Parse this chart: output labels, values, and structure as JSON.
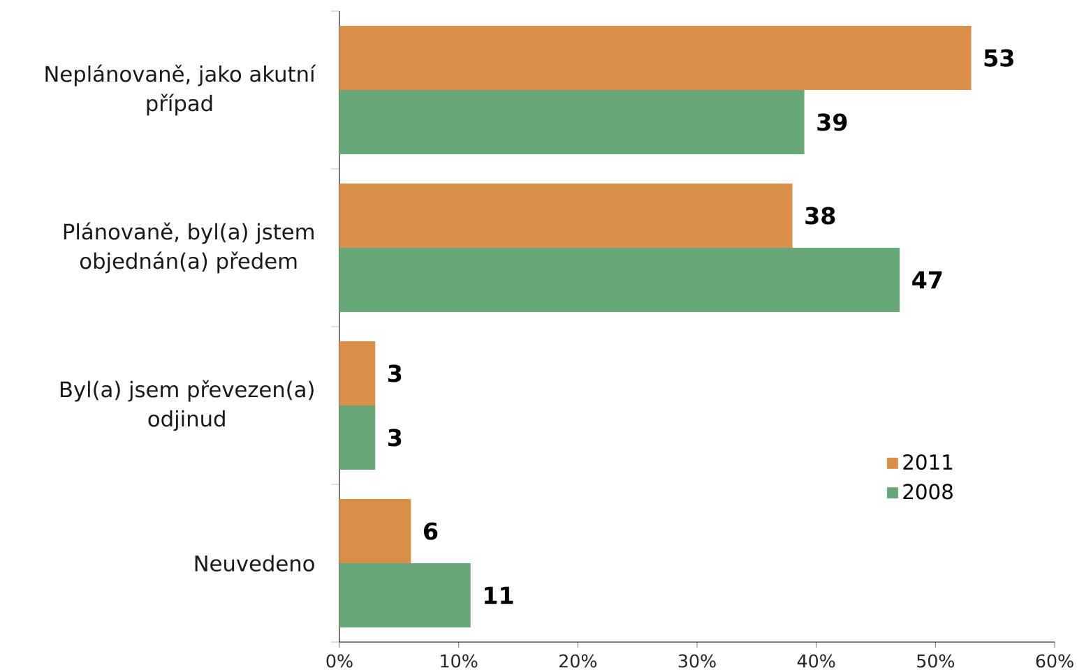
{
  "chart_data": {
    "type": "bar",
    "orientation": "horizontal",
    "categories": [
      "Neplánovaně, jako akutní případ",
      "Plánovaně, byl(a) jstem objednán(a) předem",
      "Byl(a) jsem převezen(a) odjinud",
      "Neuvedeno"
    ],
    "series": [
      {
        "name": "2011",
        "color": "#d98e4a",
        "values": [
          53,
          38,
          3,
          6
        ]
      },
      {
        "name": "2008",
        "color": "#67a778",
        "values": [
          39,
          47,
          3,
          11
        ]
      }
    ],
    "xlim": [
      0,
      60
    ],
    "xticks": [
      {
        "value": 0,
        "label": "0%"
      },
      {
        "value": 10,
        "label": "10%"
      },
      {
        "value": 20,
        "label": "20%"
      },
      {
        "value": 30,
        "label": "30%"
      },
      {
        "value": 40,
        "label": "40%"
      },
      {
        "value": 50,
        "label": "50%"
      },
      {
        "value": 60,
        "label": "60%"
      }
    ],
    "data_labels": true,
    "legend": "bottom right"
  }
}
